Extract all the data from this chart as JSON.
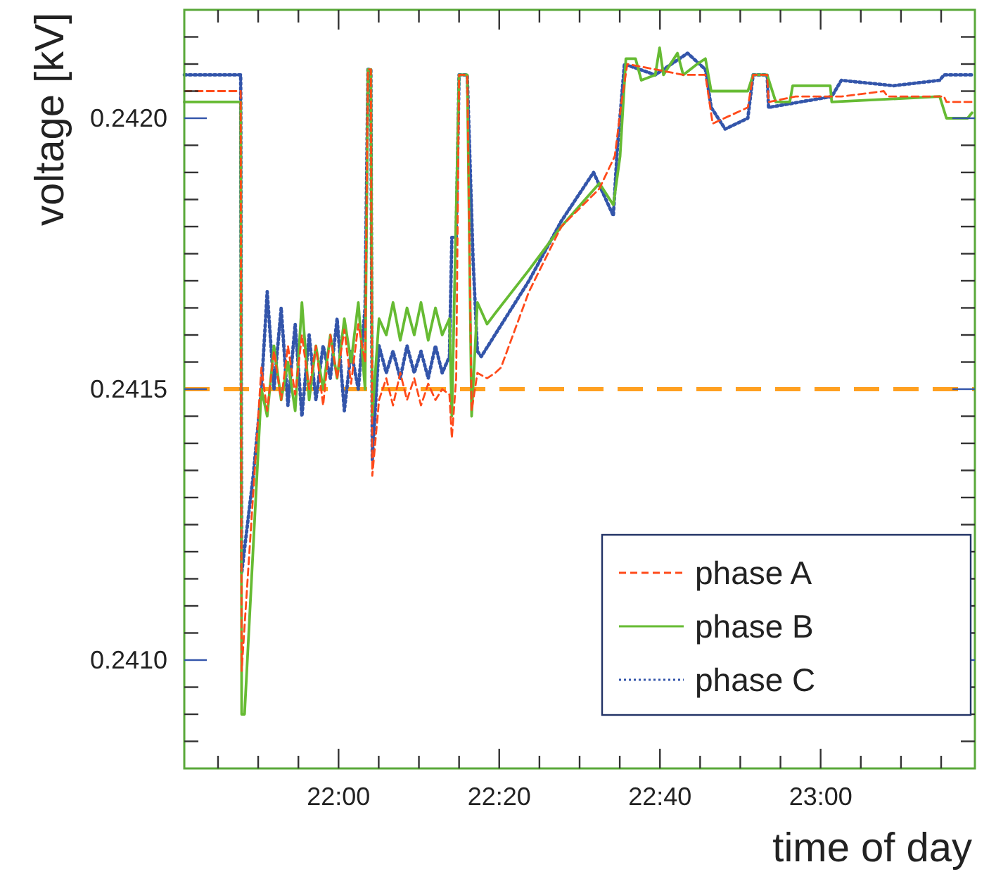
{
  "chart_data": {
    "type": "line",
    "xlabel": "time of day",
    "ylabel": "voltage [kV]",
    "xlim": [
      21.68,
      23.32
    ],
    "ylim": [
      0.2408,
      0.2422
    ],
    "xticks": [
      {
        "value": 21.75,
        "label": null
      },
      {
        "value": 21.8333,
        "label": null
      },
      {
        "value": 21.9167,
        "label": null
      },
      {
        "value": 22,
        "label": "22:00"
      },
      {
        "value": 22.0833,
        "label": null
      },
      {
        "value": 22.1667,
        "label": null
      },
      {
        "value": 22.25,
        "label": null
      },
      {
        "value": 22.3333,
        "label": "22:20"
      },
      {
        "value": 22.4167,
        "label": null
      },
      {
        "value": 22.5,
        "label": null
      },
      {
        "value": 22.5833,
        "label": null
      },
      {
        "value": 22.6667,
        "label": "22:40"
      },
      {
        "value": 22.75,
        "label": null
      },
      {
        "value": 22.8333,
        "label": null
      },
      {
        "value": 22.9167,
        "label": null
      },
      {
        "value": 23,
        "label": "23:00"
      },
      {
        "value": 23.0833,
        "label": null
      },
      {
        "value": 23.1667,
        "label": null
      },
      {
        "value": 23.25,
        "label": null
      }
    ],
    "yticks": [
      {
        "value": 0.24085,
        "label": null
      },
      {
        "value": 0.2409,
        "label": null
      },
      {
        "value": 0.24095,
        "label": null
      },
      {
        "value": 0.241,
        "label": "0.2410"
      },
      {
        "value": 0.24105,
        "label": null
      },
      {
        "value": 0.2411,
        "label": null
      },
      {
        "value": 0.24115,
        "label": null
      },
      {
        "value": 0.2412,
        "label": null
      },
      {
        "value": 0.24125,
        "label": null
      },
      {
        "value": 0.2413,
        "label": null
      },
      {
        "value": 0.24135,
        "label": null
      },
      {
        "value": 0.2414,
        "label": null
      },
      {
        "value": 0.24145,
        "label": null
      },
      {
        "value": 0.2415,
        "label": "0.2415"
      },
      {
        "value": 0.24155,
        "label": null
      },
      {
        "value": 0.2416,
        "label": null
      },
      {
        "value": 0.24165,
        "label": null
      },
      {
        "value": 0.2417,
        "label": null
      },
      {
        "value": 0.24175,
        "label": null
      },
      {
        "value": 0.2418,
        "label": null
      },
      {
        "value": 0.24185,
        "label": null
      },
      {
        "value": 0.2419,
        "label": null
      },
      {
        "value": 0.24195,
        "label": null
      },
      {
        "value": 0.242,
        "label": "0.2420"
      },
      {
        "value": 0.24205,
        "label": null
      },
      {
        "value": 0.2421,
        "label": null
      },
      {
        "value": 0.24215,
        "label": null
      }
    ],
    "grid": false,
    "legend": "bottom right",
    "marker": "none",
    "ref_lines": [
      {
        "axis": "y",
        "value": 0.2415,
        "color": "#ffa020",
        "line_style": "dashed"
      }
    ],
    "series": [
      {
        "name": "phase A",
        "color": "#ff4a1a",
        "line_style": "dashed",
        "x": [
          21.68,
          21.797,
          21.799,
          21.84,
          21.852,
          21.866,
          21.881,
          21.895,
          21.91,
          21.924,
          21.939,
          21.953,
          21.968,
          21.983,
          21.997,
          22.012,
          22.026,
          22.041,
          22.055,
          22.061,
          22.067,
          22.07,
          22.084,
          22.099,
          22.113,
          22.128,
          22.142,
          22.157,
          22.171,
          22.186,
          22.201,
          22.215,
          22.23,
          22.235,
          22.244,
          22.25,
          22.267,
          22.276,
          22.288,
          22.308,
          22.325,
          22.337,
          22.395,
          22.462,
          22.541,
          22.573,
          22.587,
          22.599,
          22.657,
          22.715,
          22.761,
          22.776,
          22.849,
          22.86,
          22.889,
          22.892,
          22.948,
          23.043,
          23.131,
          23.139,
          23.256,
          23.261,
          23.314
        ],
        "values": [
          0.24205,
          0.24205,
          0.24098,
          0.24154,
          0.24146,
          0.24157,
          0.24148,
          0.24158,
          0.24149,
          0.2416,
          0.2415,
          0.24158,
          0.24147,
          0.2416,
          0.24152,
          0.24161,
          0.24151,
          0.24162,
          0.24155,
          0.24209,
          0.24209,
          0.24134,
          0.24148,
          0.24152,
          0.24147,
          0.24153,
          0.24148,
          0.24152,
          0.24147,
          0.24151,
          0.24148,
          0.2415,
          0.24149,
          0.24141,
          0.24152,
          0.24208,
          0.24208,
          0.24146,
          0.24153,
          0.24152,
          0.24153,
          0.24154,
          0.24168,
          0.2418,
          0.24187,
          0.24193,
          0.24203,
          0.2421,
          0.24209,
          0.24208,
          0.24208,
          0.24199,
          0.24202,
          0.24208,
          0.24208,
          0.24203,
          0.24204,
          0.24204,
          0.24205,
          0.24204,
          0.24204,
          0.24203,
          0.24203
        ]
      },
      {
        "name": "phase B",
        "color": "#66bb33",
        "line_style": "solid",
        "x": [
          21.68,
          21.797,
          21.799,
          21.805,
          21.84,
          21.852,
          21.866,
          21.881,
          21.895,
          21.91,
          21.924,
          21.939,
          21.953,
          21.968,
          21.983,
          21.997,
          22.012,
          22.026,
          22.041,
          22.055,
          22.061,
          22.067,
          22.07,
          22.084,
          22.099,
          22.113,
          22.128,
          22.142,
          22.157,
          22.171,
          22.186,
          22.201,
          22.215,
          22.23,
          22.235,
          22.25,
          22.267,
          22.276,
          22.288,
          22.308,
          22.325,
          22.395,
          22.462,
          22.541,
          22.57,
          22.584,
          22.596,
          22.616,
          22.628,
          22.657,
          22.666,
          22.674,
          22.703,
          22.715,
          22.744,
          22.761,
          22.773,
          22.849,
          22.86,
          22.889,
          22.907,
          22.936,
          22.942,
          23.02,
          23.023,
          23.247,
          23.261,
          23.305,
          23.314
        ],
        "values": [
          0.24203,
          0.24203,
          0.2409,
          0.2409,
          0.2415,
          0.24145,
          0.24158,
          0.24148,
          0.24155,
          0.24146,
          0.24166,
          0.24148,
          0.24158,
          0.2415,
          0.2416,
          0.24152,
          0.24163,
          0.24155,
          0.24166,
          0.2415,
          0.24209,
          0.24209,
          0.24145,
          0.24163,
          0.2416,
          0.24166,
          0.24159,
          0.24165,
          0.2416,
          0.24166,
          0.24159,
          0.24165,
          0.2416,
          0.24163,
          0.24145,
          0.24208,
          0.24208,
          0.24145,
          0.24166,
          0.24162,
          0.24164,
          0.24172,
          0.2418,
          0.24188,
          0.24184,
          0.24193,
          0.24211,
          0.24211,
          0.24207,
          0.24208,
          0.24213,
          0.24208,
          0.24212,
          0.24208,
          0.2421,
          0.24211,
          0.24205,
          0.24205,
          0.24208,
          0.24208,
          0.24203,
          0.24203,
          0.24206,
          0.24206,
          0.24203,
          0.24204,
          0.242,
          0.242,
          0.24201
        ]
      },
      {
        "name": "phase C",
        "color": "#3355aa",
        "line_style": "dotted",
        "x": [
          21.68,
          21.797,
          21.799,
          21.823,
          21.84,
          21.852,
          21.866,
          21.881,
          21.895,
          21.91,
          21.924,
          21.939,
          21.953,
          21.968,
          21.983,
          21.997,
          22.012,
          22.026,
          22.041,
          22.055,
          22.061,
          22.067,
          22.07,
          22.084,
          22.099,
          22.113,
          22.128,
          22.142,
          22.157,
          22.171,
          22.186,
          22.201,
          22.215,
          22.23,
          22.235,
          22.244,
          22.25,
          22.267,
          22.279,
          22.288,
          22.296,
          22.395,
          22.462,
          22.529,
          22.57,
          22.578,
          22.593,
          22.657,
          22.724,
          22.761,
          22.773,
          22.802,
          22.849,
          22.86,
          22.889,
          22.892,
          23.023,
          23.043,
          23.151,
          23.247,
          23.256,
          23.314
        ],
        "values": [
          0.24208,
          0.24208,
          0.24116,
          0.24134,
          0.2415,
          0.24168,
          0.2415,
          0.24165,
          0.24147,
          0.24162,
          0.24145,
          0.2416,
          0.24148,
          0.24158,
          0.24152,
          0.24163,
          0.24146,
          0.24157,
          0.2415,
          0.24165,
          0.24209,
          0.24209,
          0.24137,
          0.24158,
          0.24153,
          0.24157,
          0.24152,
          0.24158,
          0.24153,
          0.24157,
          0.24152,
          0.24158,
          0.24153,
          0.24156,
          0.24178,
          0.24178,
          0.24208,
          0.24208,
          0.24174,
          0.24157,
          0.24156,
          0.2417,
          0.24181,
          0.2419,
          0.24182,
          0.24194,
          0.2421,
          0.24208,
          0.24212,
          0.24209,
          0.24202,
          0.24198,
          0.242,
          0.24208,
          0.24208,
          0.24202,
          0.24204,
          0.24207,
          0.24206,
          0.24207,
          0.24208,
          0.24208
        ]
      }
    ]
  }
}
